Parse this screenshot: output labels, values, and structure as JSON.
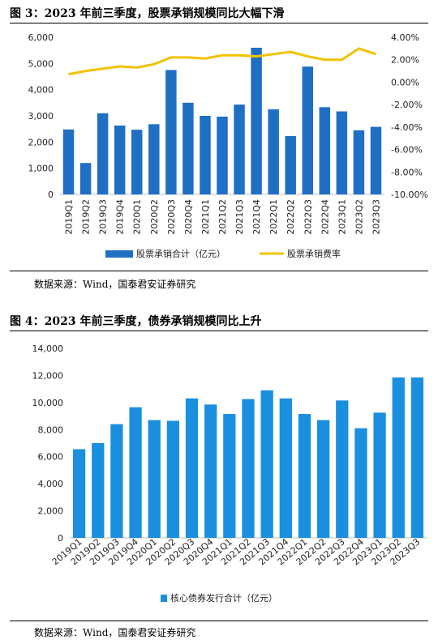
{
  "chart_data": [
    {
      "type": "bar",
      "title": "图  3：2023 年前三季度，股票承销规模同比大幅下滑",
      "categories": [
        "2019Q1",
        "2019Q2",
        "2019Q3",
        "2019Q4",
        "2020Q1",
        "2020Q2",
        "2020Q3",
        "2020Q4",
        "2021Q1",
        "2021Q2",
        "2021Q3",
        "2021Q4",
        "2022Q1",
        "2022Q2",
        "2022Q3",
        "2022Q4",
        "2023Q1",
        "2023Q2",
        "2023Q3"
      ],
      "series": [
        {
          "name": "股票承销合计（亿元）",
          "kind": "bar",
          "axis": "left",
          "color": "#1f6fc5",
          "values": [
            2480,
            1200,
            3100,
            2630,
            2470,
            2680,
            4750,
            3500,
            3000,
            2970,
            3430,
            5600,
            3250,
            2230,
            4880,
            3330,
            3170,
            2450,
            2580
          ]
        },
        {
          "name": "股票承销费率",
          "kind": "line",
          "axis": "right",
          "color": "#f2c200",
          "values": [
            0.7,
            1.0,
            1.2,
            1.4,
            1.3,
            1.6,
            2.2,
            2.2,
            2.1,
            2.4,
            2.4,
            2.3,
            2.5,
            2.7,
            2.3,
            2.0,
            2.0,
            3.0,
            2.5
          ]
        }
      ],
      "ylim": [
        0,
        6000
      ],
      "yticks": [
        "0",
        "1,000",
        "2,000",
        "3,000",
        "4,000",
        "5,000",
        "6,000"
      ],
      "y2lim": [
        -10,
        4
      ],
      "y2ticks": [
        "-10.00%",
        "-8.00%",
        "-6.00%",
        "-4.00%",
        "-2.00%",
        "0.00%",
        "2.00%",
        "4.00%"
      ],
      "legend": "bottom",
      "source": "数据来源：Wind，国泰君安证券研究"
    },
    {
      "type": "bar",
      "title": "图  4：2023 年前三季度，债券承销规模同比上升",
      "categories": [
        "2019Q1",
        "2019Q2",
        "2019Q3",
        "2019Q4",
        "2020Q1",
        "2020Q2",
        "2020Q3",
        "2020Q4",
        "2021Q1",
        "2021Q2",
        "2021Q3",
        "2021Q4",
        "2022Q1",
        "2022Q2",
        "2022Q3",
        "2022Q4",
        "2023Q1",
        "2023Q2",
        "2023Q3"
      ],
      "series": [
        {
          "name": "核心债券发行合计（亿元）",
          "kind": "bar",
          "axis": "left",
          "color": "#1a8fe0",
          "values": [
            6550,
            7000,
            8400,
            9650,
            8700,
            8650,
            10300,
            9850,
            9150,
            10250,
            10900,
            10300,
            9150,
            8700,
            10150,
            8100,
            9250,
            11850,
            11850
          ]
        }
      ],
      "ylim": [
        0,
        14000
      ],
      "yticks": [
        "0",
        "2,000",
        "4,000",
        "6,000",
        "8,000",
        "10,000",
        "12,000",
        "14,000"
      ],
      "legend": "bottom",
      "source": "数据来源：Wind，国泰君安证券研究"
    }
  ]
}
